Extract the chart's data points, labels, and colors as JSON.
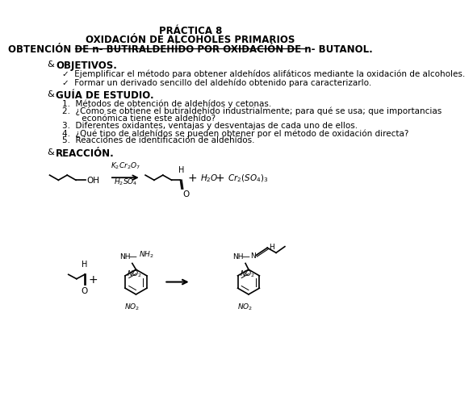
{
  "title1": "PRÁCTICA 8",
  "title2": "OXIDACIÓN DE ALCOHOLES PRIMARIOS",
  "title3": "OBTENCIÓN DE n- BUTIRALDEHÍDO POR OXIDACIÓN DE n- BUTANOL.",
  "section1": "OBJETIVOS.",
  "bullet1": "Ejemplificar el método para obtener aldehídos alifáticos mediante la oxidación de alcoholes.",
  "bullet2": "Formar un derivado sencillo del aldehído obtenido para caracterizarlo.",
  "section2": "GUÍA DE ESTUDIO.",
  "item1": "1.  Métodos de obtención de aldehídos y cetonas.",
  "item2a": "2.  ¿Cómo se obtiene el butiraldehído industrialmente; para qué se usa; que importancias",
  "item2b": "     económica tiene este aldehído?",
  "item3": "3.  Diferentes oxidantes, ventajas y desventajas de cada uno de ellos.",
  "item4": "4.  ¿Qué tipo de aldehídos se pueden obtener por el método de oxidación directa?",
  "item5": "5.  Reacciones de identificación de aldehídos.",
  "section3": "REACCIÓN.",
  "bg_color": "#ffffff",
  "text_color": "#000000"
}
